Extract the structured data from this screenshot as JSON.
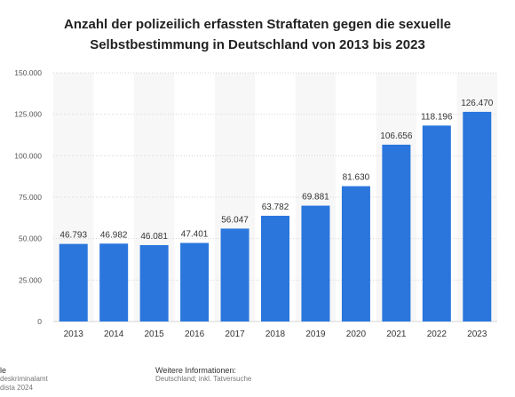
{
  "chart_data": {
    "type": "bar",
    "title": "Anzahl der polizeilich erfassten Straftaten gegen die sexuelle Selbstbestimmung in Deutschland von 2013 bis 2023",
    "categories": [
      "2013",
      "2014",
      "2015",
      "2016",
      "2017",
      "2018",
      "2019",
      "2020",
      "2021",
      "2022",
      "2023"
    ],
    "values": [
      46793,
      46982,
      46081,
      47401,
      56047,
      63782,
      69881,
      81630,
      106656,
      118196,
      126470
    ],
    "data_labels": [
      "46.793",
      "46.982",
      "46.081",
      "47.401",
      "56.047",
      "63.782",
      "69.881",
      "81.630",
      "106.656",
      "118.196",
      "126.470"
    ],
    "y_ticks": [
      0,
      25000,
      50000,
      75000,
      100000,
      125000,
      150000
    ],
    "y_tick_labels": [
      "0",
      "25.000",
      "50.000",
      "75.000",
      "100.000",
      "125.000",
      "150.000"
    ],
    "ylim": [
      0,
      150000
    ],
    "xlabel": "",
    "ylabel": "",
    "grid": true,
    "bar_color": "#2a76dd"
  },
  "footer": {
    "source_header": "le",
    "source_lines": [
      "deskriminalamt",
      "dista 2024"
    ],
    "info_header": "Weitere Informationen:",
    "info_text": "Deutschland; inkl. Tatversuche"
  }
}
